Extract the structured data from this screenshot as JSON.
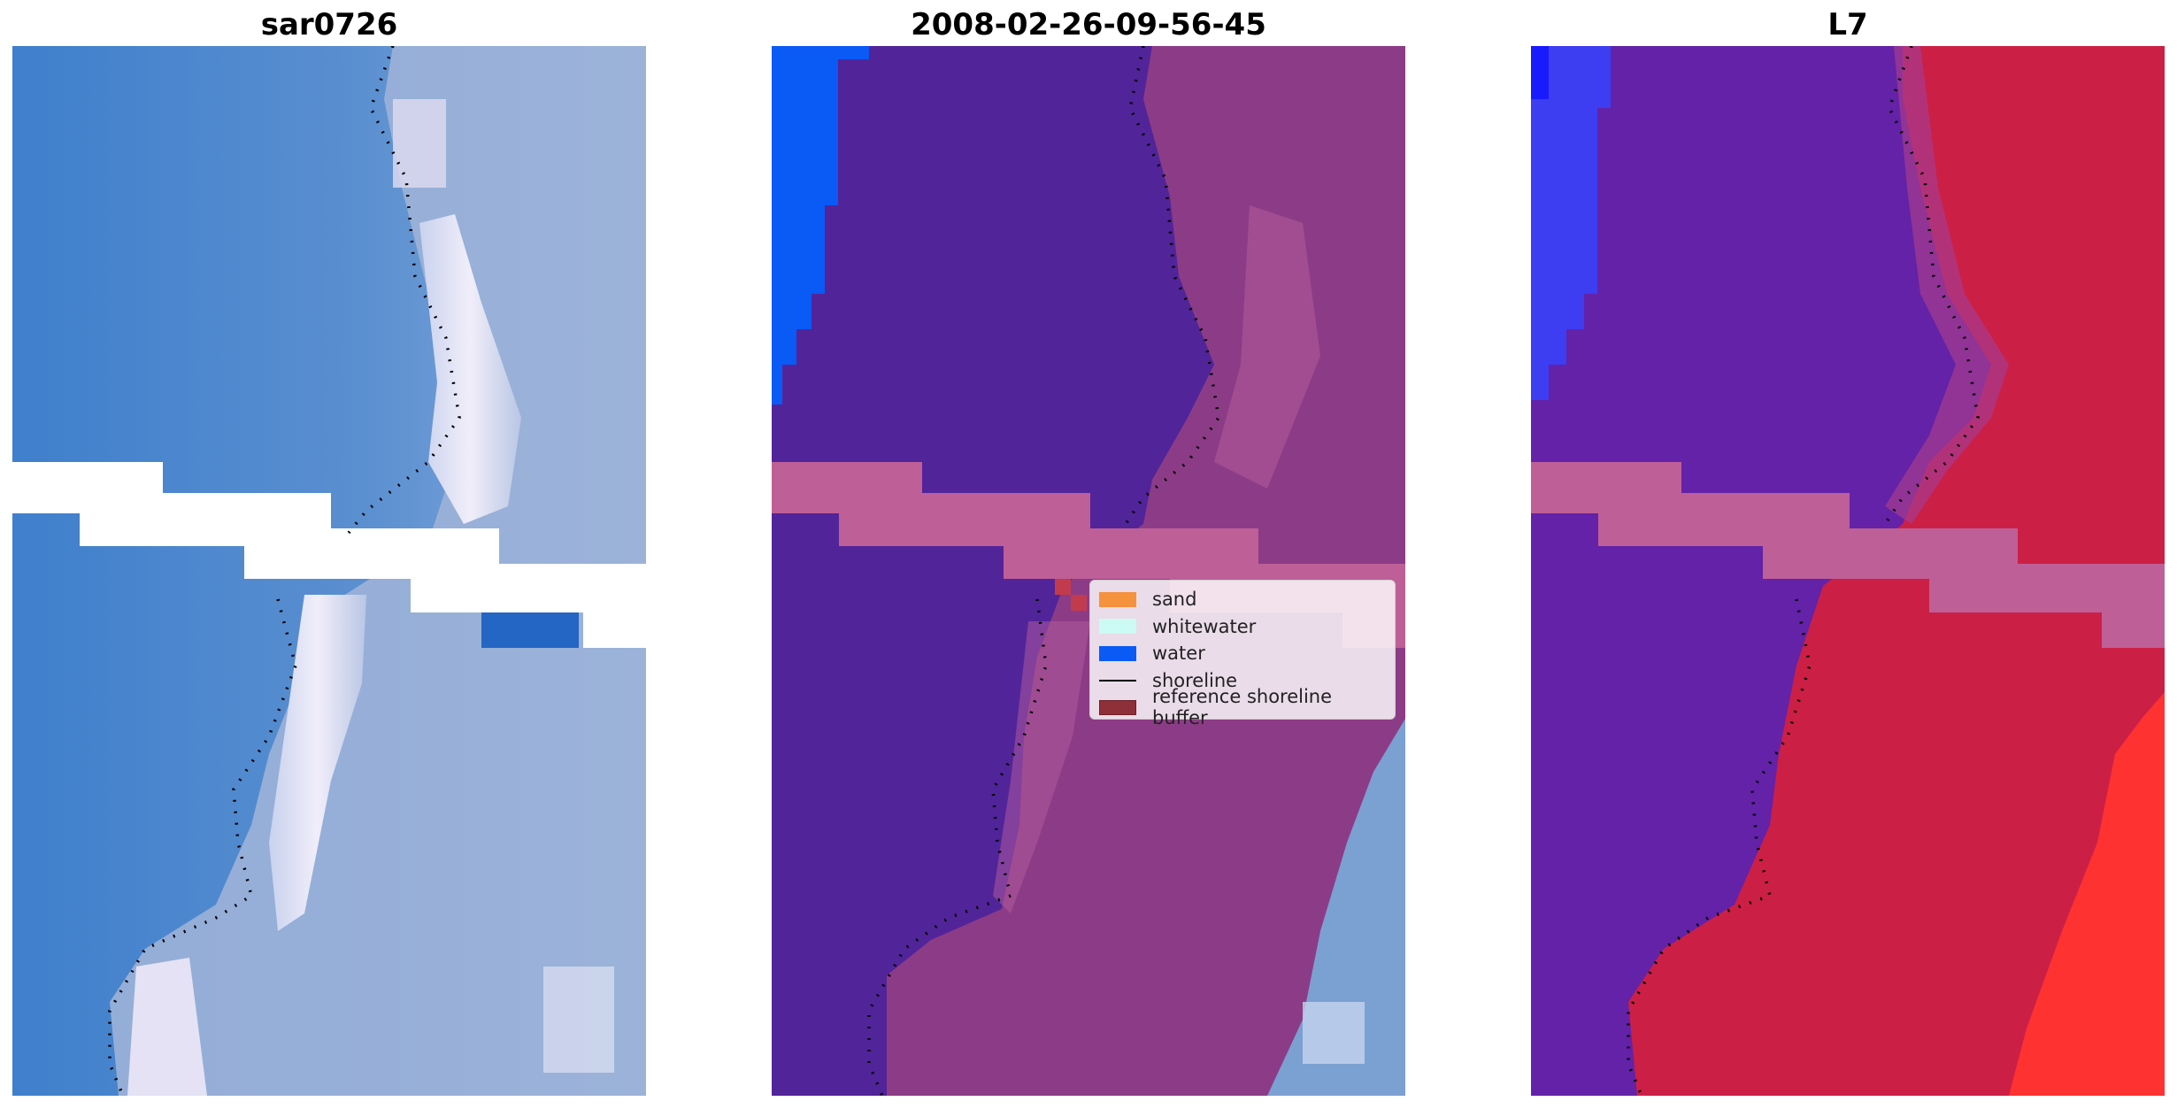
{
  "panels": [
    {
      "id": "rgb",
      "title": "sar0726"
    },
    {
      "id": "classified",
      "title": "2008-02-26-09-56-45"
    },
    {
      "id": "index",
      "title": "L7"
    }
  ],
  "legend": {
    "items": [
      {
        "label": "sand",
        "color": "#f5923e",
        "kind": "patch"
      },
      {
        "label": "whitewater",
        "color": "#ccfaf4",
        "kind": "patch"
      },
      {
        "label": "water",
        "color": "#0a5af5",
        "kind": "patch"
      },
      {
        "label": "shoreline",
        "color": "#000000",
        "kind": "line"
      },
      {
        "label": "reference shoreline buffer",
        "color": "#8f2f37",
        "kind": "patch"
      }
    ]
  },
  "colors": {
    "rgb_water": "#3f7fcc",
    "rgb_light": "#a9bedc",
    "rgb_foam": "#e8e6f4",
    "class_water": "#0a5af5",
    "class_purple": "#52249a",
    "class_sand": "#8c3c86",
    "buffer_pink": "#be5f97",
    "index_blue": "#3d3df2",
    "index_purple": "#6322a8",
    "index_red": "#cc1f46",
    "index_bright_red": "#ff3232"
  }
}
